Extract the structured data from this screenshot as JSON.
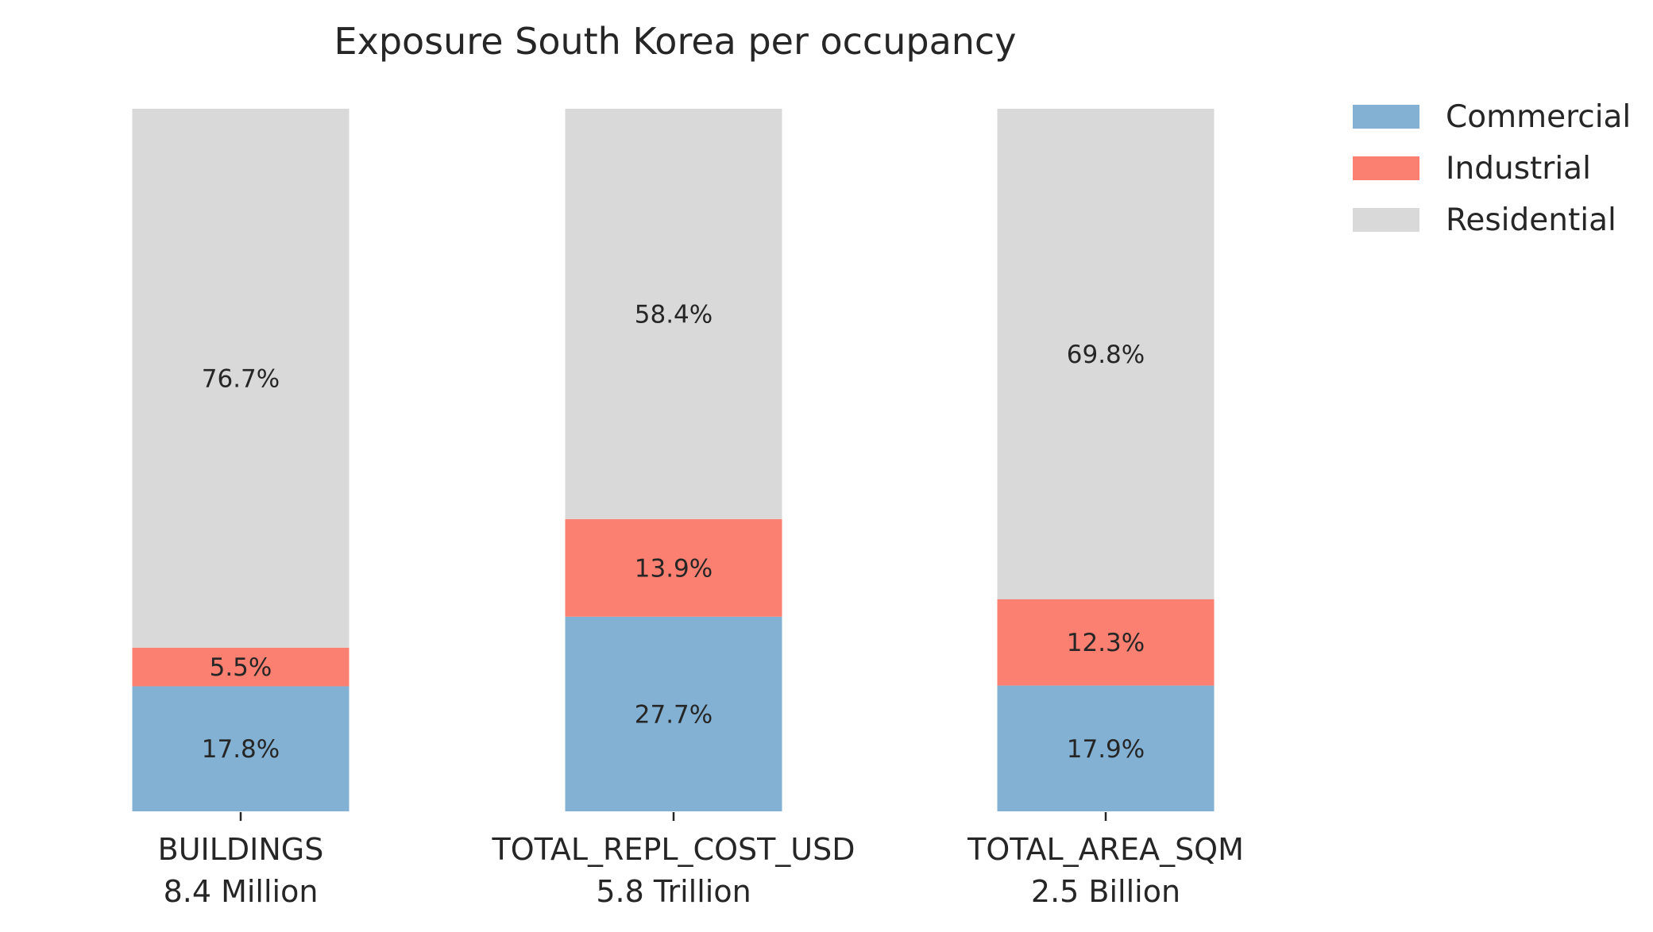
{
  "chart_data": {
    "type": "bar",
    "stacked": true,
    "normalized_percent": true,
    "title": "Exposure South Korea per occupancy",
    "categories": [
      "BUILDINGS",
      "TOTAL_REPL_COST_USD",
      "TOTAL_AREA_SQM"
    ],
    "category_totals": [
      "8.4 Million",
      "5.8 Trillion",
      "2.5 Billion"
    ],
    "series": [
      {
        "name": "Commercial",
        "color": "#82b1d3",
        "values": [
          17.8,
          27.7,
          17.9
        ],
        "labels": [
          "17.8%",
          "27.7%",
          "17.9%"
        ]
      },
      {
        "name": "Industrial",
        "color": "#fb8072",
        "values": [
          5.5,
          13.9,
          12.3
        ],
        "labels": [
          "5.5%",
          "13.9%",
          "12.3%"
        ]
      },
      {
        "name": "Residential",
        "color": "#d9d9d9",
        "values": [
          76.7,
          58.4,
          69.8
        ],
        "labels": [
          "76.7%",
          "58.4%",
          "69.8%"
        ]
      }
    ],
    "ylim": [
      0,
      100
    ],
    "xlabel": "",
    "ylabel": "",
    "grid": false,
    "legend_position": "top-right"
  }
}
